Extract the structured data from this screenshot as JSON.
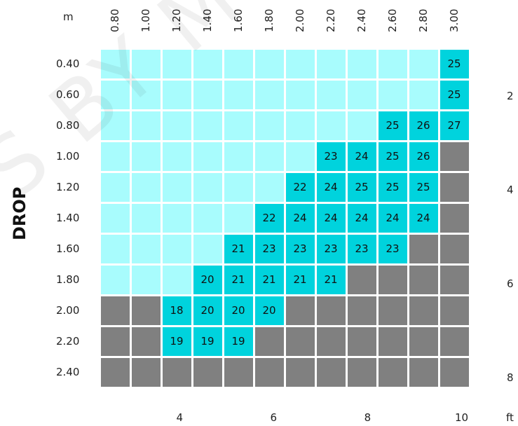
{
  "chart_data": {
    "type": "heatmap",
    "row_axis_label": "DROP",
    "width_unit": "m",
    "ft_unit": "ft",
    "columns": [
      "0.80",
      "1.00",
      "1.20",
      "1.40",
      "1.60",
      "1.80",
      "2.00",
      "2.20",
      "2.40",
      "2.60",
      "2.80",
      "3.00"
    ],
    "rows": [
      "0.40",
      "0.60",
      "0.80",
      "1.00",
      "1.20",
      "1.40",
      "1.60",
      "1.80",
      "2.00",
      "2.20",
      "2.40"
    ],
    "values": [
      [
        "L",
        "L",
        "L",
        "L",
        "L",
        "L",
        "L",
        "L",
        "L",
        "L",
        "L",
        "25"
      ],
      [
        "L",
        "L",
        "L",
        "L",
        "L",
        "L",
        "L",
        "L",
        "L",
        "L",
        "L",
        "25"
      ],
      [
        "L",
        "L",
        "L",
        "L",
        "L",
        "L",
        "L",
        "L",
        "L",
        "25",
        "26",
        "27"
      ],
      [
        "L",
        "L",
        "L",
        "L",
        "L",
        "L",
        "L",
        "23",
        "24",
        "25",
        "26",
        "G"
      ],
      [
        "L",
        "L",
        "L",
        "L",
        "L",
        "L",
        "22",
        "24",
        "25",
        "25",
        "25",
        "G"
      ],
      [
        "L",
        "L",
        "L",
        "L",
        "L",
        "22",
        "24",
        "24",
        "24",
        "24",
        "24",
        "G"
      ],
      [
        "L",
        "L",
        "L",
        "L",
        "21",
        "23",
        "23",
        "23",
        "23",
        "23",
        "G",
        "G"
      ],
      [
        "L",
        "L",
        "L",
        "20",
        "21",
        "21",
        "21",
        "21",
        "G",
        "G",
        "G",
        "G"
      ],
      [
        "G",
        "G",
        "18",
        "20",
        "20",
        "20",
        "G",
        "G",
        "G",
        "G",
        "G",
        "G"
      ],
      [
        "G",
        "G",
        "19",
        "19",
        "19",
        "G",
        "G",
        "G",
        "G",
        "G",
        "G",
        "G"
      ],
      [
        "G",
        "G",
        "G",
        "G",
        "G",
        "G",
        "G",
        "G",
        "G",
        "G",
        "G",
        "G"
      ]
    ],
    "cell_kinds": {
      "L": "empty-light",
      "G": "unavailable-grey"
    },
    "ft_bottom": [
      {
        "label": "4",
        "metres": 1.2192
      },
      {
        "label": "6",
        "metres": 1.8288
      },
      {
        "label": "8",
        "metres": 2.4384
      },
      {
        "label": "10",
        "metres": 3.048
      }
    ],
    "ft_right": [
      {
        "label": "2",
        "metres": 0.6096
      },
      {
        "label": "4",
        "metres": 1.2192
      },
      {
        "label": "6",
        "metres": 1.8288
      },
      {
        "label": "8",
        "metres": 2.4384
      }
    ],
    "colors": {
      "empty": "#a8fcfd",
      "value": "#00d3dd",
      "unavailable": "#808080",
      "gridline": "#ffffff"
    }
  }
}
